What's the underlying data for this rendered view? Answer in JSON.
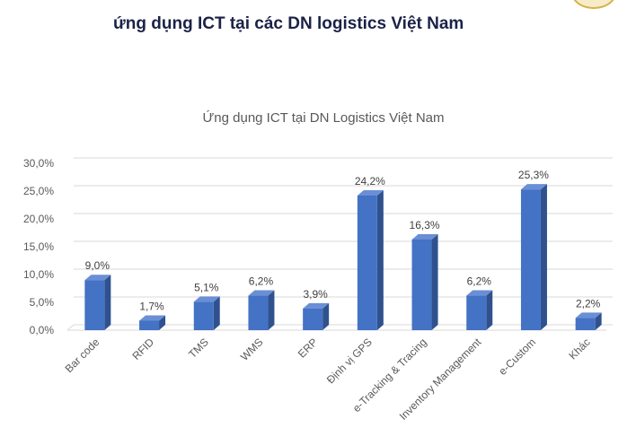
{
  "page": {
    "heading": "ứng dụng ICT tại các DN logistics Việt Nam",
    "seal_color": "#d4b24a"
  },
  "chart_data": {
    "type": "bar",
    "title": "Ứng dụng ICT tại DN Logistics Việt Nam",
    "categories": [
      "Bar code",
      "RFID",
      "TMS",
      "WMS",
      "ERP",
      "Định vị GPS",
      "e-Tracking & Tracing",
      "Inventory Management",
      "e-Custom",
      "Khác"
    ],
    "values": [
      9.0,
      1.7,
      5.1,
      6.2,
      3.9,
      24.2,
      16.3,
      6.2,
      25.3,
      2.2
    ],
    "data_labels": [
      "9,0%",
      "1,7%",
      "5,1%",
      "6,2%",
      "3,9%",
      "24,2%",
      "16,3%",
      "6,2%",
      "25,3%",
      "2,2%"
    ],
    "yticks": [
      "0,0%",
      "5,0%",
      "10,0%",
      "15,0%",
      "20,0%",
      "25,0%",
      "30,0%"
    ],
    "ylim": [
      0,
      30
    ],
    "grid": true,
    "bar_style": "3d",
    "colors": {
      "bar_front": "#4472c4",
      "bar_side": "#2f528f",
      "bar_top": "#6a8fd6",
      "grid": "#d9d9d9",
      "text": "#595959"
    }
  }
}
